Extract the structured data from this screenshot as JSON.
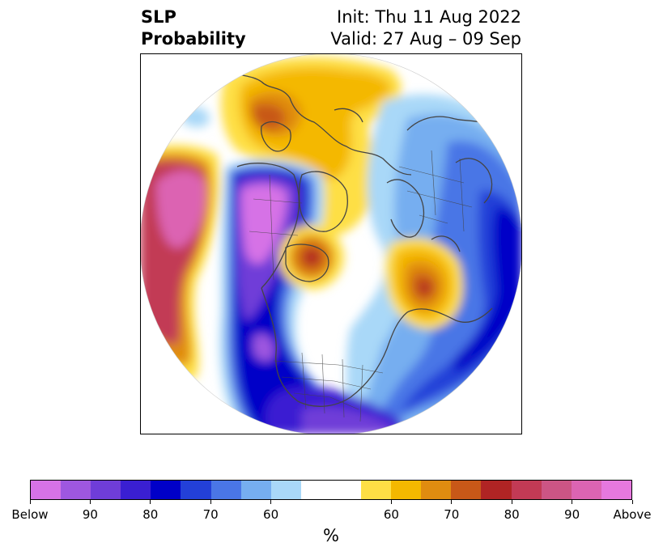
{
  "header": {
    "title_line1": "SLP",
    "title_line2": "Probability",
    "init_text": "Init: Thu 11 Aug 2022",
    "valid_text": "Valid: 27 Aug – 09 Sep"
  },
  "colorbar": {
    "unit": "%",
    "colors": [
      "#d672e6",
      "#9e57e0",
      "#6f3dd8",
      "#3a1fd2",
      "#0000c8",
      "#2340d8",
      "#4a76e6",
      "#76aef0",
      "#a9d8f8",
      "#ffffff",
      "#ffffff",
      "#fedf45",
      "#f4b800",
      "#e08c10",
      "#c85818",
      "#b02424",
      "#c23a55",
      "#cc5585",
      "#dc64b2",
      "#e678de"
    ],
    "tick_labels": [
      "Below",
      "90",
      "80",
      "70",
      "60",
      "60",
      "70",
      "80",
      "90",
      "Above"
    ]
  },
  "map": {
    "projection": "polar-stereographic north",
    "field": "SLP probability",
    "features": [
      "coastlines",
      "country borders",
      "US state boundaries"
    ],
    "palette": {
      "land_line": "#444444",
      "above_max": "#e678de",
      "below_max": "#d672e6"
    }
  }
}
